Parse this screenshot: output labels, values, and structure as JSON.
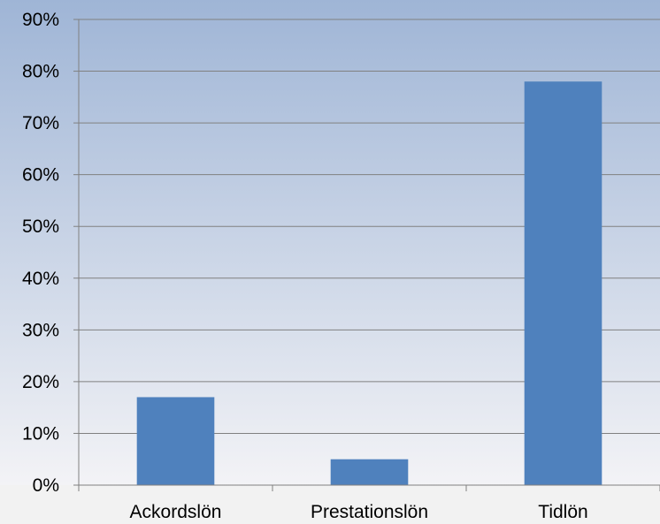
{
  "chart_data": {
    "type": "bar",
    "title": "",
    "xlabel": "",
    "ylabel": "",
    "categories": [
      "Ackordslön",
      "Prestationslön",
      "Tidlön"
    ],
    "values": [
      17,
      5,
      78
    ],
    "ylim": [
      0,
      90
    ],
    "yticks": [
      0,
      10,
      20,
      30,
      40,
      50,
      60,
      70,
      80,
      90
    ],
    "ytick_labels": [
      "0%",
      "10%",
      "20%",
      "30%",
      "40%",
      "50%",
      "60%",
      "70%",
      "80%",
      "90%"
    ],
    "grid": true,
    "legend": "none",
    "colors": {
      "bar": "#4f81bd",
      "gridline": "#808080",
      "background_top": "#9fb5d6",
      "background_bottom": "#f3f3f6"
    }
  }
}
